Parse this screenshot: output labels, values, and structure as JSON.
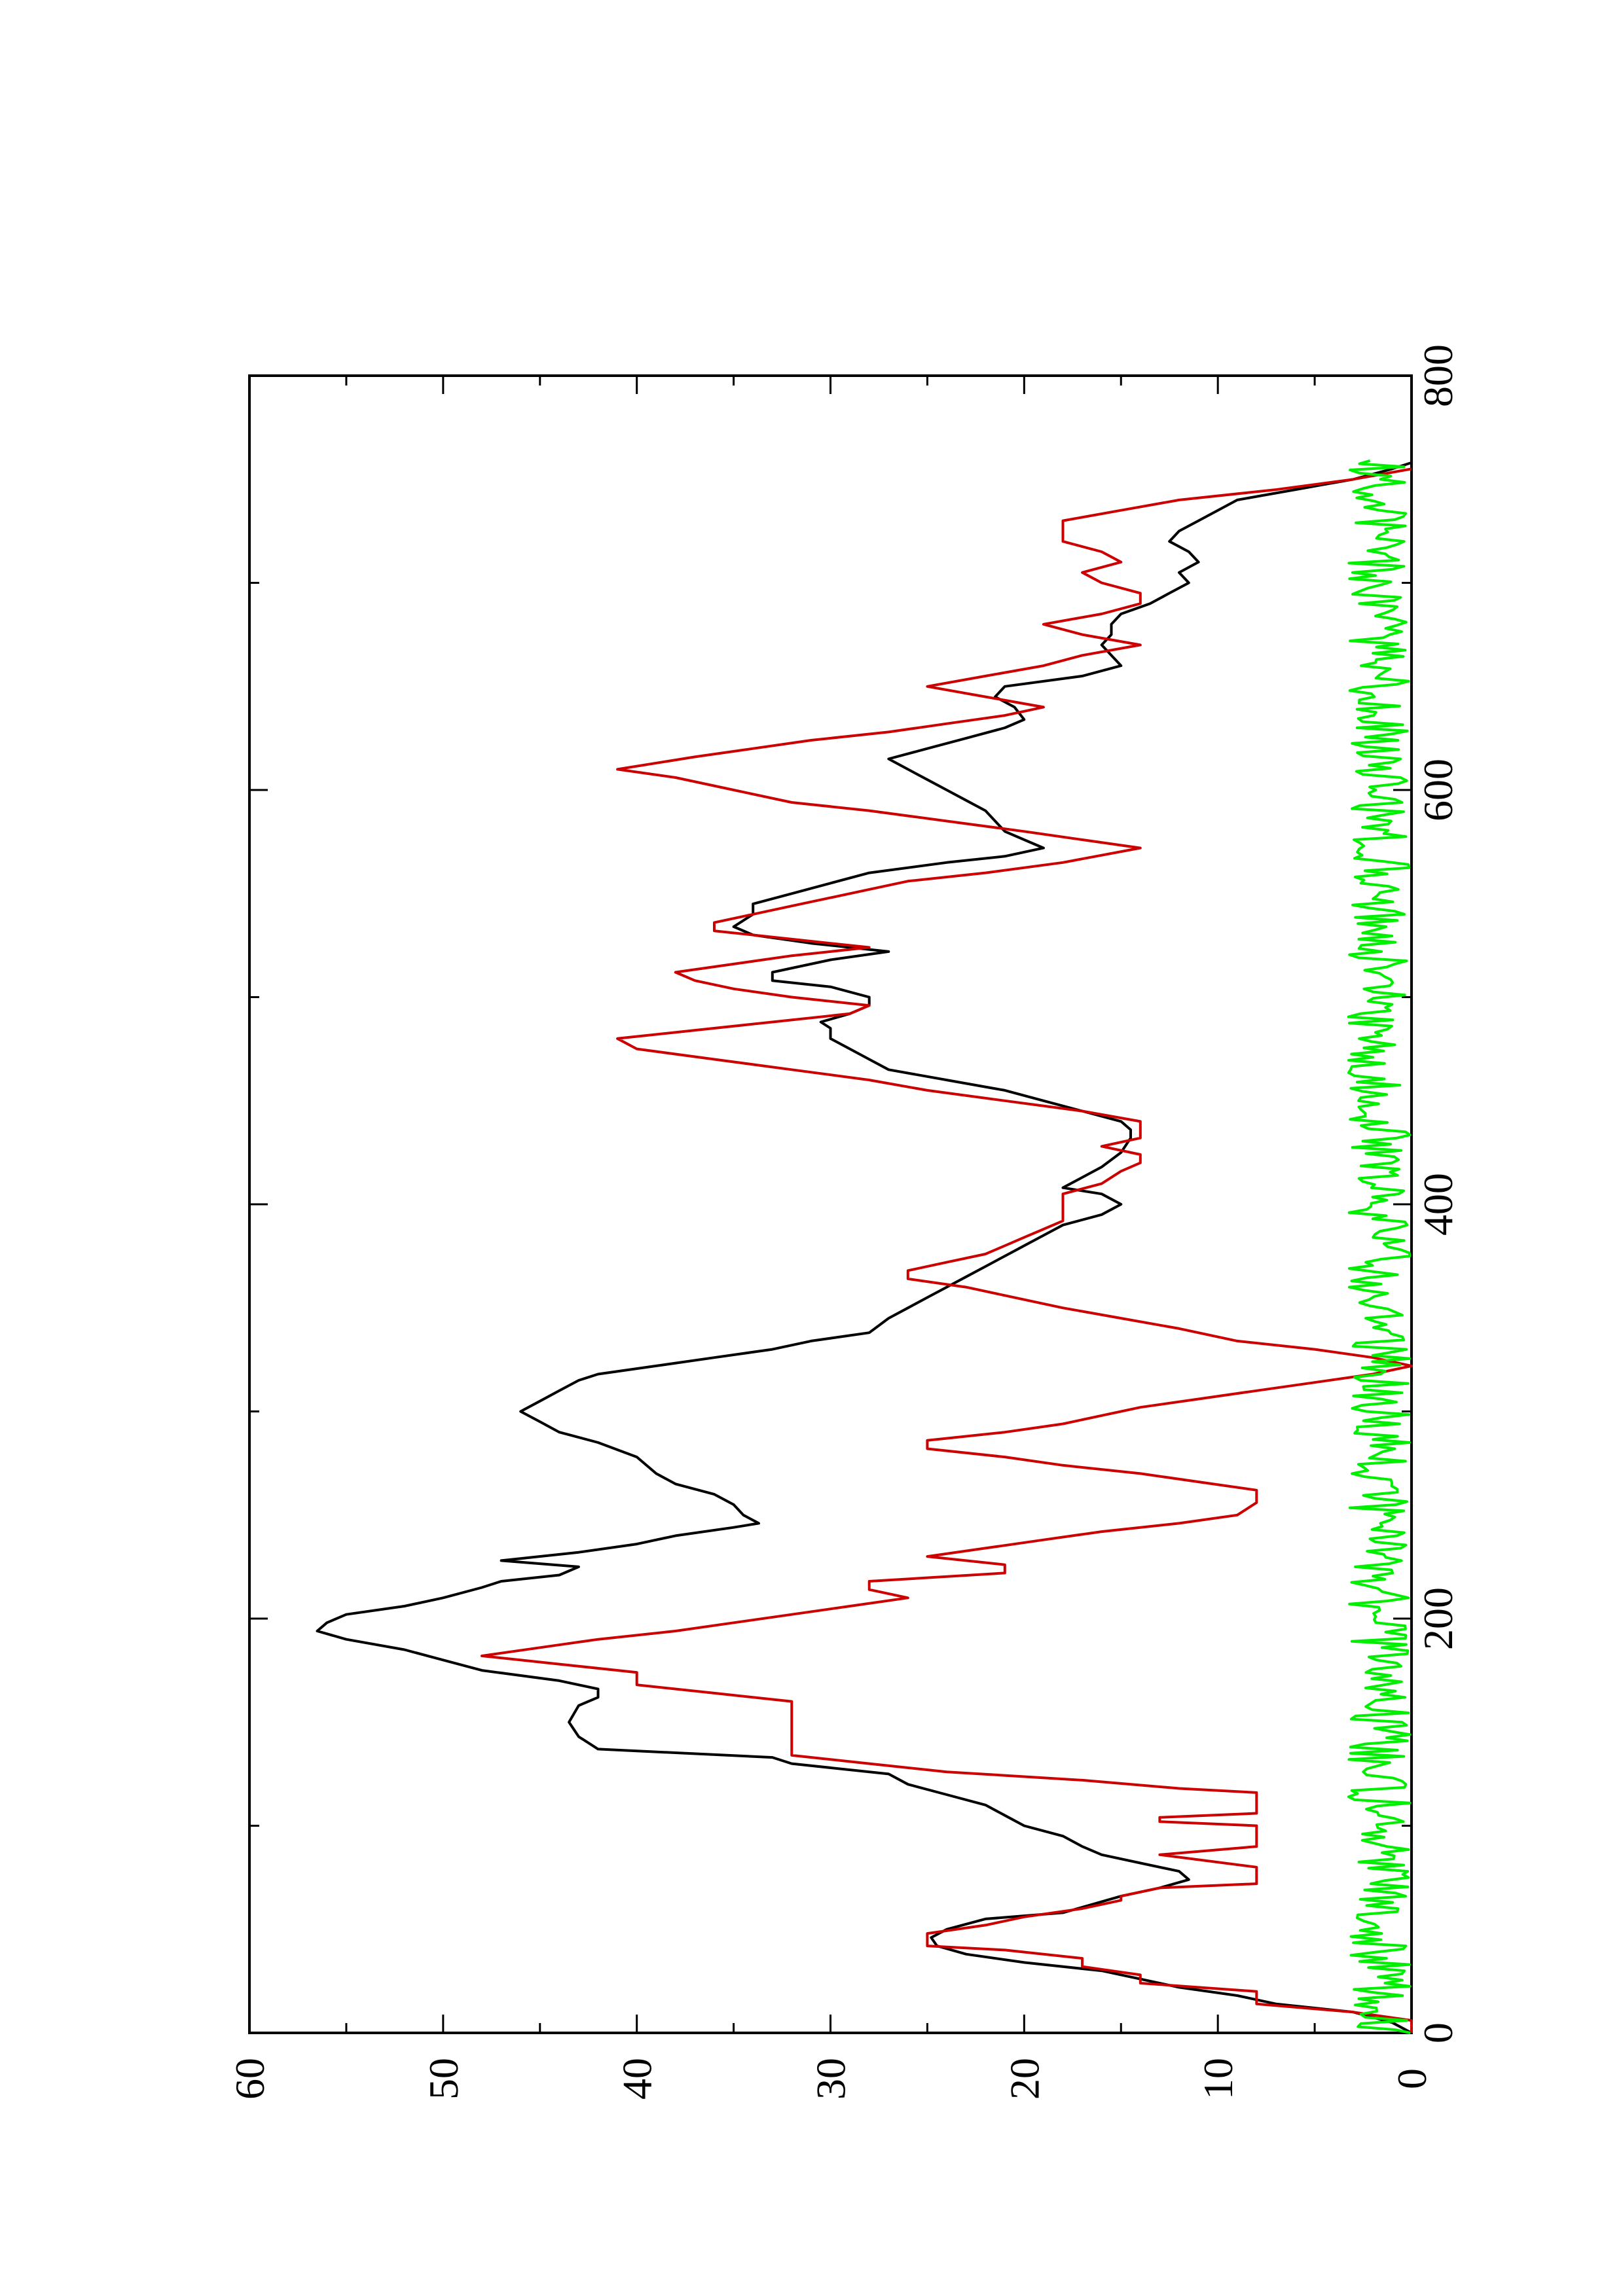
{
  "chart_data": {
    "type": "line",
    "orientation": "rotated-90-ccw",
    "title": "",
    "xlabel": "",
    "ylabel": "",
    "xlim": [
      0,
      800
    ],
    "ylim": [
      0,
      60
    ],
    "x_ticks": [
      0,
      200,
      400,
      600,
      800
    ],
    "x_tick_labels": [
      "0",
      "200",
      "400",
      "600",
      "800"
    ],
    "x_minor_ticks": [
      100,
      300,
      500,
      700
    ],
    "y_ticks": [
      0,
      10,
      20,
      30,
      40,
      50,
      60
    ],
    "y_tick_labels": [
      "0",
      "10",
      "20",
      "30",
      "40",
      "50",
      "60"
    ],
    "y_minor_ticks": [
      5,
      15,
      25,
      35,
      45,
      55
    ],
    "grid": false,
    "legend": "none",
    "series": [
      {
        "color": "#000000",
        "style": "solid",
        "points": [
          [
            0,
            0
          ],
          [
            5,
            1
          ],
          [
            10,
            3
          ],
          [
            14,
            7
          ],
          [
            18,
            9
          ],
          [
            22,
            12
          ],
          [
            26,
            14
          ],
          [
            30,
            16
          ],
          [
            34,
            20
          ],
          [
            38,
            23
          ],
          [
            42,
            24.5
          ],
          [
            46,
            24.8
          ],
          [
            50,
            24
          ],
          [
            55,
            22
          ],
          [
            58,
            18
          ],
          [
            62,
            16.5
          ],
          [
            66,
            15
          ],
          [
            70,
            13
          ],
          [
            74,
            11.5
          ],
          [
            78,
            12
          ],
          [
            82,
            14
          ],
          [
            86,
            16
          ],
          [
            90,
            17
          ],
          [
            95,
            18
          ],
          [
            100,
            20
          ],
          [
            105,
            21
          ],
          [
            110,
            22
          ],
          [
            115,
            24
          ],
          [
            120,
            26
          ],
          [
            125,
            27
          ],
          [
            130,
            32
          ],
          [
            133,
            33
          ],
          [
            137,
            42
          ],
          [
            143,
            43
          ],
          [
            150,
            43.5
          ],
          [
            158,
            43
          ],
          [
            162,
            42
          ],
          [
            166,
            42
          ],
          [
            170,
            44
          ],
          [
            175,
            48
          ],
          [
            180,
            50
          ],
          [
            185,
            52
          ],
          [
            190,
            55
          ],
          [
            194,
            56.5
          ],
          [
            198,
            56
          ],
          [
            202,
            55
          ],
          [
            206,
            52
          ],
          [
            210,
            50
          ],
          [
            215,
            48
          ],
          [
            218,
            47
          ],
          [
            221,
            44
          ],
          [
            225,
            43
          ],
          [
            228,
            47
          ],
          [
            232,
            43
          ],
          [
            236,
            40
          ],
          [
            240,
            38
          ],
          [
            244,
            35
          ],
          [
            246,
            33.7
          ],
          [
            250,
            34.5
          ],
          [
            255,
            35
          ],
          [
            260,
            36
          ],
          [
            265,
            38
          ],
          [
            270,
            39
          ],
          [
            278,
            40
          ],
          [
            285,
            42
          ],
          [
            290,
            44
          ],
          [
            295,
            45
          ],
          [
            300,
            46
          ],
          [
            305,
            45
          ],
          [
            310,
            44
          ],
          [
            315,
            43
          ],
          [
            318,
            42
          ],
          [
            322,
            39
          ],
          [
            326,
            36
          ],
          [
            330,
            33
          ],
          [
            334,
            31
          ],
          [
            338,
            28
          ],
          [
            345,
            27
          ],
          [
            350,
            26
          ],
          [
            355,
            25
          ],
          [
            360,
            24
          ],
          [
            365,
            23
          ],
          [
            370,
            22
          ],
          [
            375,
            21
          ],
          [
            380,
            20
          ],
          [
            385,
            19
          ],
          [
            390,
            18
          ],
          [
            395,
            16
          ],
          [
            400,
            15
          ],
          [
            405,
            16
          ],
          [
            408,
            18
          ],
          [
            413,
            17
          ],
          [
            418,
            16
          ],
          [
            425,
            15
          ],
          [
            432,
            14.5
          ],
          [
            436,
            14.5
          ],
          [
            440,
            15
          ],
          [
            445,
            17
          ],
          [
            450,
            19
          ],
          [
            455,
            21
          ],
          [
            460,
            24
          ],
          [
            465,
            27
          ],
          [
            470,
            28
          ],
          [
            475,
            29
          ],
          [
            480,
            30
          ],
          [
            485,
            30
          ],
          [
            488,
            30.5
          ],
          [
            492,
            29
          ],
          [
            496,
            28
          ],
          [
            500,
            28
          ],
          [
            505,
            30
          ],
          [
            508,
            33
          ],
          [
            512,
            33
          ],
          [
            518,
            30
          ],
          [
            522,
            27
          ],
          [
            526,
            31
          ],
          [
            530,
            34
          ],
          [
            534,
            35
          ],
          [
            540,
            34
          ],
          [
            545,
            34
          ],
          [
            550,
            32
          ],
          [
            555,
            30
          ],
          [
            560,
            28
          ],
          [
            565,
            24
          ],
          [
            568,
            21
          ],
          [
            572,
            19
          ],
          [
            576,
            20
          ],
          [
            580,
            21
          ],
          [
            585,
            21.5
          ],
          [
            590,
            22
          ],
          [
            595,
            23
          ],
          [
            600,
            24
          ],
          [
            605,
            25
          ],
          [
            610,
            26
          ],
          [
            615,
            27
          ],
          [
            620,
            25
          ],
          [
            625,
            23
          ],
          [
            630,
            21
          ],
          [
            634,
            20
          ],
          [
            640,
            20.5
          ],
          [
            645,
            21.5
          ],
          [
            650,
            21
          ],
          [
            655,
            17
          ],
          [
            660,
            15
          ],
          [
            665,
            15.5
          ],
          [
            670,
            16
          ],
          [
            675,
            15.5
          ],
          [
            680,
            15.5
          ],
          [
            685,
            15
          ],
          [
            690,
            13.5
          ],
          [
            695,
            12.5
          ],
          [
            700,
            11.5
          ],
          [
            705,
            12
          ],
          [
            710,
            11
          ],
          [
            715,
            11.5
          ],
          [
            720,
            12.5
          ],
          [
            725,
            12
          ],
          [
            730,
            11
          ],
          [
            735,
            10
          ],
          [
            740,
            9
          ],
          [
            745,
            6
          ],
          [
            750,
            3
          ],
          [
            755,
            1
          ],
          [
            758,
            0
          ]
        ]
      },
      {
        "color": "#cc0000",
        "style": "solid",
        "points": [
          [
            0,
            0
          ],
          [
            6,
            0
          ],
          [
            10,
            3
          ],
          [
            14,
            8
          ],
          [
            20,
            8
          ],
          [
            24,
            14
          ],
          [
            28,
            14
          ],
          [
            32,
            17
          ],
          [
            36,
            17
          ],
          [
            40,
            21
          ],
          [
            42,
            25
          ],
          [
            48,
            25
          ],
          [
            52,
            22
          ],
          [
            56,
            20
          ],
          [
            60,
            17
          ],
          [
            64,
            15
          ],
          [
            66,
            15
          ],
          [
            70,
            13
          ],
          [
            72,
            8
          ],
          [
            80,
            8
          ],
          [
            86,
            13
          ],
          [
            90,
            8
          ],
          [
            100,
            8
          ],
          [
            102,
            13
          ],
          [
            104,
            13
          ],
          [
            106,
            8
          ],
          [
            116,
            8
          ],
          [
            118,
            12
          ],
          [
            122,
            17
          ],
          [
            126,
            24
          ],
          [
            130,
            28
          ],
          [
            134,
            32
          ],
          [
            160,
            32
          ],
          [
            164,
            36
          ],
          [
            168,
            40
          ],
          [
            174,
            40
          ],
          [
            178,
            44
          ],
          [
            182,
            48
          ],
          [
            186,
            45
          ],
          [
            190,
            42
          ],
          [
            194,
            38
          ],
          [
            198,
            35
          ],
          [
            202,
            32
          ],
          [
            206,
            29
          ],
          [
            210,
            26
          ],
          [
            214,
            28
          ],
          [
            218,
            28
          ],
          [
            222,
            21
          ],
          [
            226,
            21
          ],
          [
            230,
            25
          ],
          [
            234,
            22
          ],
          [
            238,
            19
          ],
          [
            242,
            16
          ],
          [
            246,
            12
          ],
          [
            250,
            9
          ],
          [
            256,
            8
          ],
          [
            262,
            8
          ],
          [
            266,
            11
          ],
          [
            270,
            14
          ],
          [
            274,
            18
          ],
          [
            278,
            21
          ],
          [
            282,
            25
          ],
          [
            286,
            25
          ],
          [
            290,
            21
          ],
          [
            294,
            18
          ],
          [
            298,
            16
          ],
          [
            302,
            14
          ],
          [
            306,
            11
          ],
          [
            310,
            8
          ],
          [
            314,
            5
          ],
          [
            318,
            2
          ],
          [
            322,
            0
          ],
          [
            326,
            2
          ],
          [
            330,
            5
          ],
          [
            334,
            9
          ],
          [
            340,
            12
          ],
          [
            345,
            15
          ],
          [
            350,
            18
          ],
          [
            356,
            21
          ],
          [
            360,
            23
          ],
          [
            364,
            26
          ],
          [
            368,
            26
          ],
          [
            372,
            24
          ],
          [
            376,
            22
          ],
          [
            380,
            21
          ],
          [
            384,
            20
          ],
          [
            388,
            19
          ],
          [
            392,
            18
          ],
          [
            400,
            18
          ],
          [
            405,
            18
          ],
          [
            410,
            16
          ],
          [
            416,
            15
          ],
          [
            420,
            14
          ],
          [
            424,
            14
          ],
          [
            428,
            16
          ],
          [
            432,
            14
          ],
          [
            440,
            14
          ],
          [
            445,
            17
          ],
          [
            450,
            21
          ],
          [
            455,
            25
          ],
          [
            460,
            28
          ],
          [
            465,
            32
          ],
          [
            470,
            36
          ],
          [
            475,
            40
          ],
          [
            480,
            41
          ],
          [
            484,
            37
          ],
          [
            488,
            33
          ],
          [
            492,
            29
          ],
          [
            496,
            28
          ],
          [
            500,
            32
          ],
          [
            504,
            35
          ],
          [
            508,
            37
          ],
          [
            512,
            38
          ],
          [
            516,
            35
          ],
          [
            520,
            32
          ],
          [
            524,
            28
          ],
          [
            528,
            32
          ],
          [
            532,
            36
          ],
          [
            536,
            36
          ],
          [
            540,
            34
          ],
          [
            544,
            32
          ],
          [
            548,
            30
          ],
          [
            552,
            28
          ],
          [
            556,
            26
          ],
          [
            560,
            22
          ],
          [
            565,
            18
          ],
          [
            572,
            14
          ],
          [
            576,
            17
          ],
          [
            580,
            20
          ],
          [
            585,
            24
          ],
          [
            590,
            28
          ],
          [
            594,
            32
          ],
          [
            600,
            35
          ],
          [
            606,
            38
          ],
          [
            610,
            41
          ],
          [
            616,
            37
          ],
          [
            620,
            34
          ],
          [
            624,
            31
          ],
          [
            628,
            27
          ],
          [
            632,
            24
          ],
          [
            636,
            21
          ],
          [
            640,
            19
          ],
          [
            645,
            22
          ],
          [
            650,
            25
          ],
          [
            655,
            22
          ],
          [
            660,
            19
          ],
          [
            665,
            17
          ],
          [
            670,
            14
          ],
          [
            675,
            17
          ],
          [
            680,
            19
          ],
          [
            685,
            16
          ],
          [
            690,
            14
          ],
          [
            695,
            14
          ],
          [
            700,
            16
          ],
          [
            705,
            17
          ],
          [
            710,
            15
          ],
          [
            715,
            16
          ],
          [
            720,
            18
          ],
          [
            730,
            18
          ],
          [
            735,
            15
          ],
          [
            740,
            12
          ],
          [
            745,
            7
          ],
          [
            750,
            3
          ],
          [
            755,
            0
          ]
        ]
      },
      {
        "color": "#00ee00",
        "style": "solid",
        "noise_seed": 17,
        "x_range": [
          0,
          760
        ],
        "y_mean": 1.5,
        "y_amplitude": 1.6
      }
    ]
  }
}
